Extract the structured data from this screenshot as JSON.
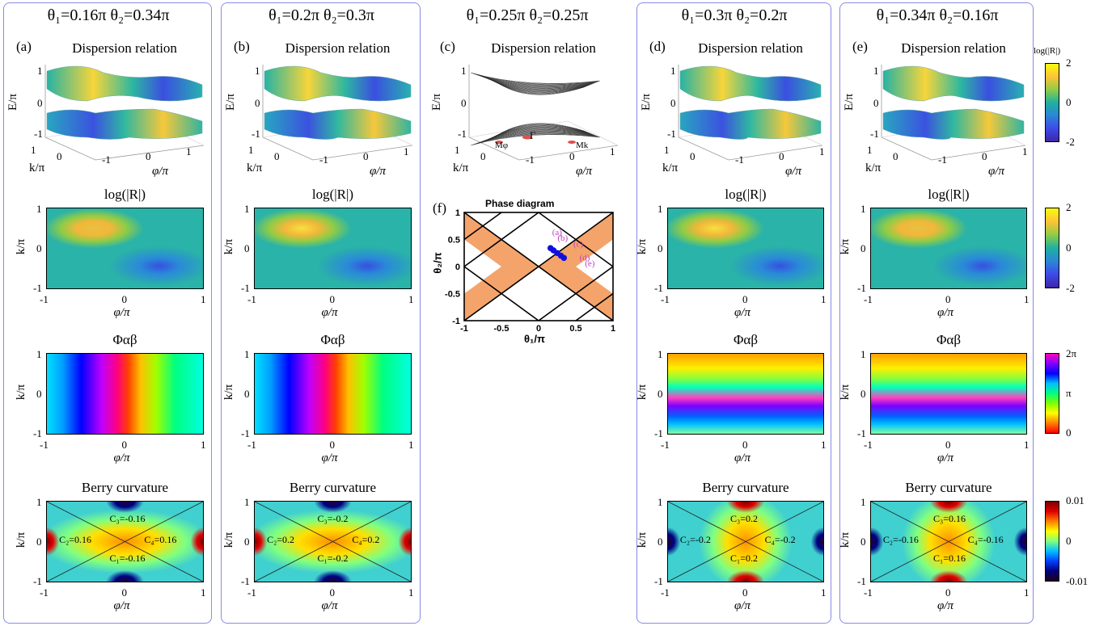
{
  "columns": [
    {
      "id": "a",
      "title": "θ₁=0.16π  θ₂=0.34π",
      "label": "(a)",
      "plot_title": "Dispersion relation",
      "chern": [
        "C₁=-0.16",
        "C₂=0.16",
        "C₃=-0.16",
        "C₄=0.16"
      ]
    },
    {
      "id": "b",
      "title": "θ₁=0.2π  θ₂=0.3π",
      "label": "(b)",
      "plot_title": "Dispersion relation",
      "chern": [
        "C₁=-0.2",
        "C₂=0.2",
        "C₃=-0.2",
        "C₄=0.2"
      ]
    },
    {
      "id": "c",
      "title": "θ₁=0.25π  θ₂=0.25π",
      "label": "(c)",
      "plot_title": "Dispersion relation",
      "chern": []
    },
    {
      "id": "d",
      "title": "θ₁=0.3π  θ₂=0.2π",
      "label": "(d)",
      "plot_title": "Dispersion relation",
      "chern": [
        "C₁=0.2",
        "C₂=-0.2",
        "C₃=0.2",
        "C₄=-0.2"
      ]
    },
    {
      "id": "e",
      "title": "θ₁=0.34π  θ₂=0.16π",
      "label": "(e)",
      "plot_title": "Dispersion relation",
      "chern": [
        "C₁=0.16",
        "C₂=-0.16",
        "C₃=0.16",
        "C₄=-0.16"
      ]
    }
  ],
  "axes": {
    "E_label": "E/π",
    "k_label": "k/π",
    "phi_label": "φ/π",
    "logR_title": "log(|R|)",
    "phase_title": "Φαβ",
    "berry_title": "Berry curvature",
    "ticks": [
      "-1",
      "0",
      "1"
    ]
  },
  "c_panel_marks": {
    "gamma": "Γ",
    "m_phi": "Mφ",
    "m_k": "Mk"
  },
  "colorbars": {
    "disp": {
      "title": "log(|R|)",
      "ticks": [
        "2",
        "0",
        "-2"
      ]
    },
    "logR": {
      "ticks": [
        "2",
        "0",
        "-2"
      ]
    },
    "phase": {
      "ticks": [
        "2π",
        "π",
        "0"
      ]
    },
    "berry": {
      "ticks": [
        "0.01",
        "0",
        "-0.01"
      ]
    }
  },
  "phase_diagram": {
    "label": "(f)",
    "title": "Phase diagram",
    "xlabel": "θ₁/π",
    "ylabel": "θ₂/π",
    "xticks": [
      "-1",
      "-0.5",
      "0",
      "0.5",
      "1"
    ],
    "yticks": [
      "1",
      "0.5",
      "0",
      "-0.5",
      "-1"
    ],
    "fill_color": "#f4a46b",
    "points": [
      {
        "name": "(a)",
        "x": 0.16,
        "y": 0.34
      },
      {
        "name": "(b)",
        "x": 0.2,
        "y": 0.3
      },
      {
        "name": "(c)",
        "x": 0.25,
        "y": 0.25
      },
      {
        "name": "(d)",
        "x": 0.3,
        "y": 0.2
      },
      {
        "name": "(e)",
        "x": 0.34,
        "y": 0.16
      }
    ],
    "point_color": "#1010dd",
    "label_color": "#c040c0"
  }
}
